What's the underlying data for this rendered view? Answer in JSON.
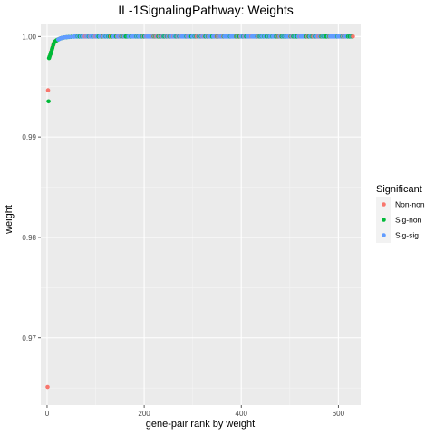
{
  "chart_data": {
    "type": "scatter",
    "title": "IL-1SignalingPathway: Weights",
    "xlabel": "gene-pair rank by weight",
    "ylabel": "weight",
    "xlim": [
      -13,
      646
    ],
    "ylim": [
      0.9633,
      1.0012
    ],
    "x_ticks": [
      0,
      200,
      400,
      600
    ],
    "x_tick_labels": [
      "0",
      "200",
      "400",
      "600"
    ],
    "y_ticks": [
      0.97,
      0.98,
      0.99,
      1.0
    ],
    "y_tick_labels": [
      "0.97",
      "0.98",
      "0.99",
      "1.00"
    ],
    "grid": true,
    "legend": {
      "title": "Significant",
      "position": "right",
      "entries": [
        {
          "name": "Non-non",
          "color": "#F8766D"
        },
        {
          "name": "Sig-non",
          "color": "#00BA38"
        },
        {
          "name": "Sig-sig",
          "color": "#619CFF"
        }
      ]
    },
    "n_points": 630,
    "series": [
      {
        "name": "Non-non",
        "color": "#F8766D",
        "points": [
          [
            1,
            0.9651
          ],
          [
            2,
            0.99465
          ],
          [
            6,
            0.99812
          ],
          [
            9,
            0.99855
          ],
          [
            12,
            0.99905
          ],
          [
            14,
            0.99935
          ],
          [
            17,
            0.99952
          ],
          [
            21,
            0.99965
          ],
          [
            26,
            0.99978
          ],
          [
            33,
            0.99988
          ]
        ]
      },
      {
        "name": "Sig-non",
        "color": "#00BA38",
        "points": [
          [
            3,
            0.99355
          ],
          [
            4,
            0.99785
          ],
          [
            5,
            0.998
          ],
          [
            7,
            0.99825
          ],
          [
            8,
            0.99842
          ],
          [
            10,
            0.99872
          ],
          [
            11,
            0.99888
          ],
          [
            13,
            0.99918
          ],
          [
            15,
            0.99942
          ],
          [
            16,
            0.99948
          ],
          [
            18,
            0.99955
          ],
          [
            19,
            0.9996
          ],
          [
            20,
            0.99963
          ],
          [
            22,
            0.99968
          ],
          [
            24,
            0.99973
          ],
          [
            27,
            0.9998
          ],
          [
            29,
            0.99983
          ],
          [
            31,
            0.99986
          ],
          [
            35,
            0.9999
          ],
          [
            40,
            0.99993
          ],
          [
            45,
            0.99995
          ],
          [
            50,
            0.99997
          ]
        ]
      },
      {
        "name": "Sig-sig",
        "color": "#619CFF",
        "points": [
          [
            23,
            0.9997
          ],
          [
            25,
            0.99975
          ],
          [
            28,
            0.99982
          ],
          [
            30,
            0.99985
          ],
          [
            32,
            0.99987
          ],
          [
            36,
            0.99991
          ],
          [
            38,
            0.99992
          ],
          [
            42,
            0.99994
          ],
          [
            47,
            0.99996
          ],
          [
            55,
            0.99998
          ]
        ]
      }
    ],
    "tail": {
      "x_from": 56,
      "x_to": 630,
      "y": 1.0,
      "note_series": [
        "Sig-sig",
        "Sig-non",
        "Non-non"
      ],
      "mix": [
        0.62,
        0.26,
        0.12
      ]
    }
  }
}
